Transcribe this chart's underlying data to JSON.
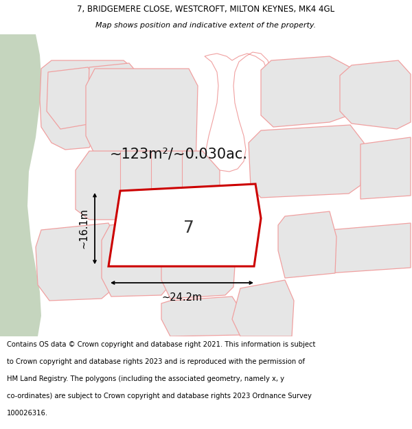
{
  "title_line1": "7, BRIDGEMERE CLOSE, WESTCROFT, MILTON KEYNES, MK4 4GL",
  "title_line2": "Map shows position and indicative extent of the property.",
  "area_text": "~123m²/~0.030ac.",
  "width_label": "~24.2m",
  "height_label": "~16.1m",
  "property_number": "7",
  "footer_lines": [
    "Contains OS data © Crown copyright and database right 2021. This information is subject",
    "to Crown copyright and database rights 2023 and is reproduced with the permission of",
    "HM Land Registry. The polygons (including the associated geometry, namely x, y",
    "co-ordinates) are subject to Crown copyright and database rights 2023 Ordnance Survey",
    "100026316."
  ],
  "map_bg": "#ffffff",
  "cadastral_fill": "#e6e6e6",
  "cadastral_edge": "#f0a0a0",
  "highlight_red": "#cc0000",
  "green_fill": "#c5d5be",
  "white": "#ffffff",
  "title_fontsize": 8.5,
  "subtitle_fontsize": 8.0,
  "area_fontsize": 15,
  "prop_num_fontsize": 18,
  "dim_fontsize": 10.5,
  "footer_fontsize": 7.2
}
